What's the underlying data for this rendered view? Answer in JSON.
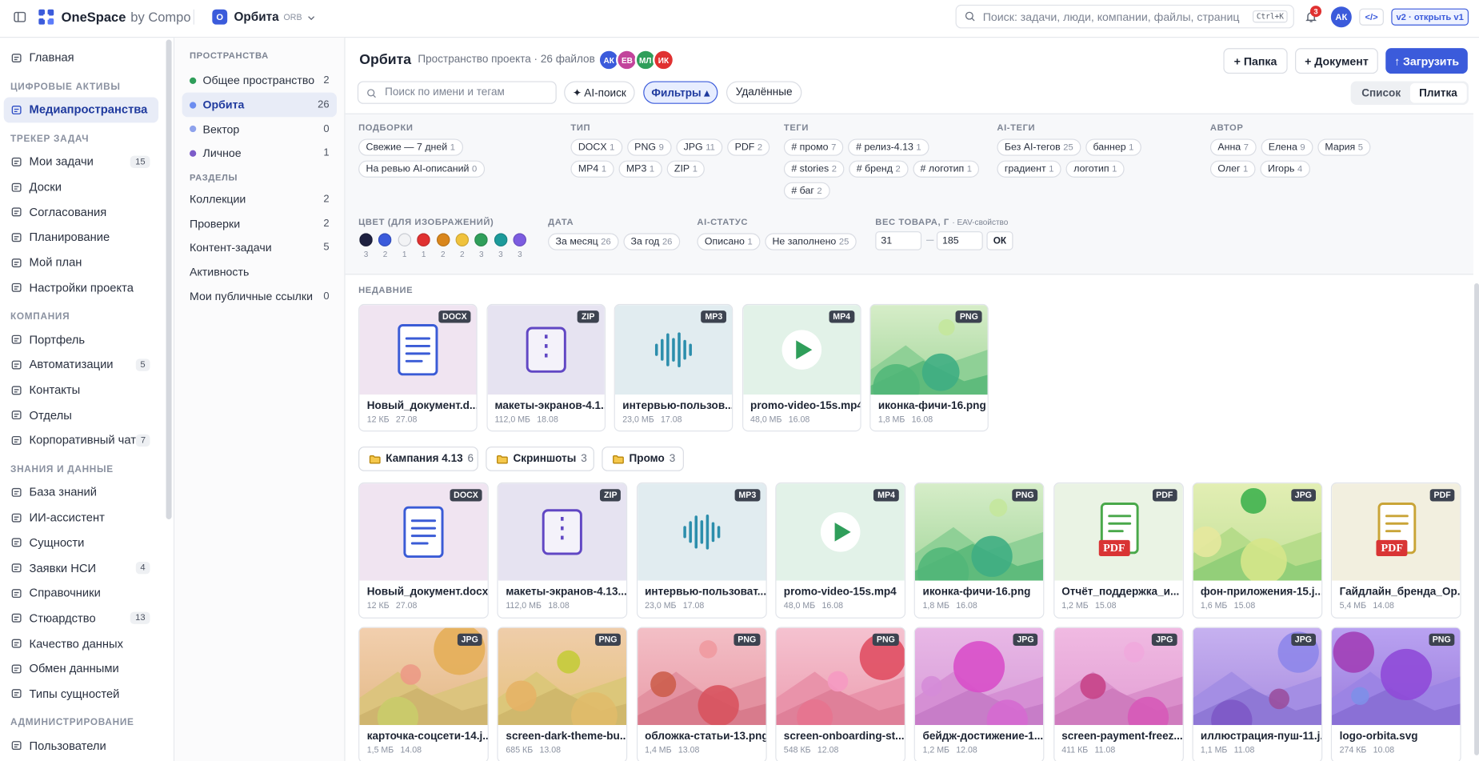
{
  "topbar": {
    "brand": "OneSpace",
    "brand_suffix": "by Compo",
    "workspace_badge": "О",
    "workspace": "Орбита",
    "workspace_code": "ORB",
    "search": "Поиск: задачи, люди, компании, файлы, страниц",
    "shortcut": "Ctrl+K",
    "notifications": 3,
    "avatar": "АК",
    "code": "</>",
    "version": "v2 · открыть v1"
  },
  "sidebar": {
    "home": "Главная",
    "sections": [
      {
        "title": "ЦИФРОВЫЕ АКТИВЫ",
        "items": [
          {
            "label": "Медиапространства",
            "active": true
          }
        ]
      },
      {
        "title": "ТРЕКЕР ЗАДАЧ",
        "items": [
          {
            "label": "Мои задачи",
            "count": 15
          },
          {
            "label": "Доски"
          },
          {
            "label": "Согласования"
          },
          {
            "label": "Планирование"
          },
          {
            "label": "Мой план"
          },
          {
            "label": "Настройки проекта"
          }
        ]
      },
      {
        "title": "КОМПАНИЯ",
        "items": [
          {
            "label": "Портфель"
          },
          {
            "label": "Автоматизации",
            "count": 5
          },
          {
            "label": "Контакты"
          },
          {
            "label": "Отделы"
          },
          {
            "label": "Корпоративный чат",
            "count": 7
          }
        ]
      },
      {
        "title": "ЗНАНИЯ И ДАННЫЕ",
        "items": [
          {
            "label": "База знаний"
          },
          {
            "label": "ИИ-ассистент"
          },
          {
            "label": "Сущности"
          },
          {
            "label": "Заявки НСИ",
            "count": 4
          },
          {
            "label": "Справочники"
          },
          {
            "label": "Стюардство",
            "count": 13
          },
          {
            "label": "Качество данных"
          },
          {
            "label": "Обмен данными"
          },
          {
            "label": "Типы сущностей"
          }
        ]
      },
      {
        "title": "АДМИНИСТРИРОВАНИЕ",
        "items": [
          {
            "label": "Пользователи"
          }
        ]
      }
    ]
  },
  "spaces": {
    "title": "ПРОСТРАНСТВА",
    "items": [
      {
        "label": "Общее пространство",
        "count": 2,
        "color": "#2f9e5a"
      },
      {
        "label": "Орбита",
        "count": 26,
        "color": "#6b8cf0",
        "active": true
      },
      {
        "label": "Вектор",
        "count": 0,
        "color": "#8ea2ec"
      },
      {
        "label": "Личное",
        "count": 1,
        "color": "#7c5cc9"
      }
    ],
    "sections_title": "РАЗДЕЛЫ",
    "sections": [
      {
        "label": "Коллекции",
        "count": 2
      },
      {
        "label": "Проверки",
        "count": 2
      },
      {
        "label": "Контент-задачи",
        "count": 5
      },
      {
        "label": "Активность"
      },
      {
        "label": "Мои публичные ссылки",
        "count": 0
      }
    ]
  },
  "header": {
    "title": "Орбита",
    "subtitle": "Пространство проекта · 26 файлов",
    "avatars": [
      {
        "initials": "АК",
        "color": "#3b5bdb"
      },
      {
        "initials": "ЕВ",
        "color": "#c2449b"
      },
      {
        "initials": "МЛ",
        "color": "#2f9e5a"
      },
      {
        "initials": "ИК",
        "color": "#e03131"
      }
    ],
    "buttons": [
      "+ Папка",
      "+ Документ",
      "↑ Загрузить"
    ]
  },
  "toolbar": {
    "search": "Поиск по имени и тегам",
    "ai_search": "✦ AI-поиск",
    "filters": "Фильтры ▴",
    "deleted": "Удалённые",
    "views": [
      "Список",
      "Плитка"
    ],
    "active_view": 1
  },
  "filters": {
    "groups": [
      {
        "title": "ПОДБОРКИ",
        "chips": [
          {
            "label": "Свежие — 7 дней",
            "count": 1
          },
          {
            "label": "На ревью AI-описаний",
            "count": 0
          }
        ]
      },
      {
        "title": "ТИП",
        "chips": [
          {
            "label": "DOCX",
            "count": 1
          },
          {
            "label": "PNG",
            "count": 9
          },
          {
            "label": "JPG",
            "count": 11
          },
          {
            "label": "PDF",
            "count": 2
          },
          {
            "label": "MP4",
            "count": 1
          },
          {
            "label": "MP3",
            "count": 1
          },
          {
            "label": "ZIP",
            "count": 1
          }
        ]
      },
      {
        "title": "ТЕГИ",
        "chips": [
          {
            "label": "# промо",
            "count": 7
          },
          {
            "label": "# релиз-4.13",
            "count": 1
          },
          {
            "label": "# stories",
            "count": 2
          },
          {
            "label": "# бренд",
            "count": 2
          },
          {
            "label": "# логотип",
            "count": 1
          },
          {
            "label": "# баг",
            "count": 2
          }
        ]
      },
      {
        "title": "AI-ТЕГИ",
        "chips": [
          {
            "label": "Без AI-тегов",
            "count": 25
          },
          {
            "label": "баннер",
            "count": 1
          },
          {
            "label": "градиент",
            "count": 1
          },
          {
            "label": "логотип",
            "count": 1
          }
        ]
      },
      {
        "title": "АВТОР",
        "chips": [
          {
            "label": "Анна",
            "count": 7
          },
          {
            "label": "Елена",
            "count": 9
          },
          {
            "label": "Мария",
            "count": 5
          },
          {
            "label": "Олег",
            "count": 1
          },
          {
            "label": "Игорь",
            "count": 4
          }
        ]
      }
    ],
    "colors": {
      "title": "ЦВЕТ (ДЛЯ ИЗОБРАЖЕНИЙ)",
      "swatches": [
        {
          "color": "#1e2140",
          "count": 3
        },
        {
          "color": "#3b5bdb",
          "count": 2
        },
        {
          "color": "#f2f3f5",
          "count": 1
        },
        {
          "color": "#e03131",
          "count": 1
        },
        {
          "color": "#d9861c",
          "count": 2
        },
        {
          "color": "#f0c23c",
          "count": 2
        },
        {
          "color": "#2f9e5a",
          "count": 3
        },
        {
          "color": "#1c9a9a",
          "count": 3
        },
        {
          "color": "#7c5ce0",
          "count": 3
        }
      ]
    },
    "row2": [
      {
        "title": "ДАТА",
        "chips": [
          {
            "label": "За месяц",
            "count": 26
          },
          {
            "label": "За год",
            "count": 26
          }
        ]
      },
      {
        "title": "AI-СТАТУС",
        "chips": [
          {
            "label": "Описано",
            "count": 1
          },
          {
            "label": "Не заполнено",
            "count": 25
          }
        ]
      }
    ],
    "weight": {
      "title": "ВЕС ТОВАРА, Г",
      "note": "· EAV-свойство",
      "min": 31,
      "max": 185,
      "ok": "ОК"
    }
  },
  "recent": {
    "title": "НЕДАВНИЕ",
    "files": [
      {
        "type": "DOCX",
        "name": "Новый_документ.d...",
        "size": "12 КБ",
        "date": "27.08"
      },
      {
        "type": "ZIP",
        "name": "макеты-экранов-4.1...",
        "size": "112,0 МБ",
        "date": "18.08"
      },
      {
        "type": "MP3",
        "name": "интервью-пользов...",
        "size": "23,0 МБ",
        "date": "17.08"
      },
      {
        "type": "MP4",
        "name": "promo-video-15s.mp4",
        "size": "48,0 МБ",
        "date": "16.08"
      },
      {
        "type": "PNG",
        "name": "иконка-фичи-16.png",
        "size": "1,8 МБ",
        "date": "16.08"
      }
    ]
  },
  "folders": [
    {
      "name": "Кампания 4.13",
      "count": 6
    },
    {
      "name": "Скриншоты",
      "count": 3
    },
    {
      "name": "Промо",
      "count": 3
    }
  ],
  "files": [
    {
      "type": "DOCX",
      "name": "Новый_документ.docx",
      "size": "12 КБ",
      "date": "27.08"
    },
    {
      "type": "ZIP",
      "name": "макеты-экранов-4.13....",
      "size": "112,0 МБ",
      "date": "18.08"
    },
    {
      "type": "MP3",
      "name": "интервью-пользоват...",
      "size": "23,0 МБ",
      "date": "17.08"
    },
    {
      "type": "MP4",
      "name": "promo-video-15s.mp4",
      "size": "48,0 МБ",
      "date": "16.08"
    },
    {
      "type": "PNG",
      "name": "иконка-фичи-16.png",
      "size": "1,8 МБ",
      "date": "16.08"
    },
    {
      "type": "PDF",
      "name": "Отчёт_поддержка_и...",
      "size": "1,2 МБ",
      "date": "15.08"
    },
    {
      "type": "JPG",
      "name": "фон-приложения-15.j...",
      "size": "1,6 МБ",
      "date": "15.08"
    },
    {
      "type": "PDF",
      "name": "Гайдлайн_бренда_Ор...",
      "size": "5,4 МБ",
      "date": "14.08"
    },
    {
      "type": "JPG",
      "name": "карточка-соцсети-14.j...",
      "size": "1,5 МБ",
      "date": "14.08"
    },
    {
      "type": "PNG",
      "name": "screen-dark-theme-bu...",
      "size": "685 КБ",
      "date": "13.08"
    },
    {
      "type": "PNG",
      "name": "обложка-статьи-13.png",
      "size": "1,4 МБ",
      "date": "13.08"
    },
    {
      "type": "PNG",
      "name": "screen-onboarding-st...",
      "size": "548 КБ",
      "date": "12.08"
    },
    {
      "type": "JPG",
      "name": "бейдж-достижение-1...",
      "size": "1,2 МБ",
      "date": "12.08"
    },
    {
      "type": "JPG",
      "name": "screen-payment-freez...",
      "size": "411 КБ",
      "date": "11.08"
    },
    {
      "type": "JPG",
      "name": "иллюстрация-пуш-11.j...",
      "size": "1,1 МБ",
      "date": "11.08"
    },
    {
      "type": "PNG",
      "name": "logo-orbita.svg",
      "size": "274 КБ",
      "date": "10.08"
    }
  ]
}
